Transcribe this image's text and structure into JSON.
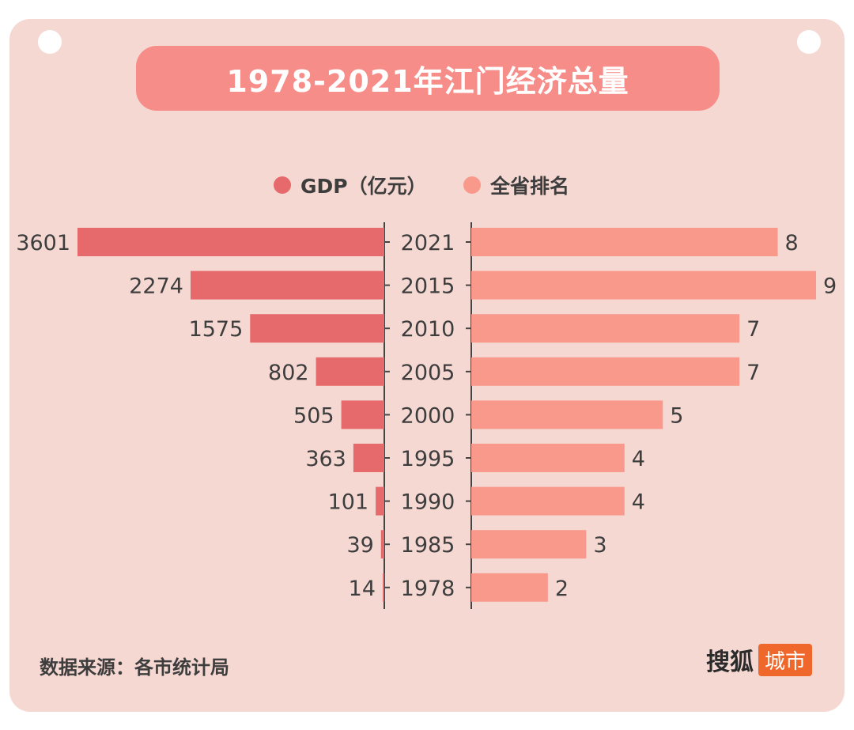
{
  "title": "1978-2021年江门经济总量",
  "legend": {
    "gdp": "GDP（亿元）",
    "rank": "全省排名"
  },
  "colors": {
    "gdp": "#e66a6b",
    "rank": "#f9998c",
    "card": "#f6d8d2",
    "title_bg": "#f78d88",
    "brand_badge": "#f0672c"
  },
  "source": "数据来源：各市统计局",
  "brand": {
    "name": "搜狐",
    "badge": "城市"
  },
  "chart_data": {
    "type": "bar",
    "layout": "butterfly",
    "categories": [
      "2021",
      "2015",
      "2010",
      "2005",
      "2000",
      "1995",
      "1990",
      "1985",
      "1978"
    ],
    "series": [
      {
        "name": "GDP（亿元）",
        "values": [
          3601,
          2274,
          1575,
          802,
          505,
          363,
          101,
          39,
          14
        ]
      },
      {
        "name": "全省排名",
        "values": [
          8,
          9,
          7,
          7,
          5,
          4,
          4,
          3,
          2
        ]
      }
    ],
    "gdp_max": 3601,
    "rank_max": 9
  }
}
